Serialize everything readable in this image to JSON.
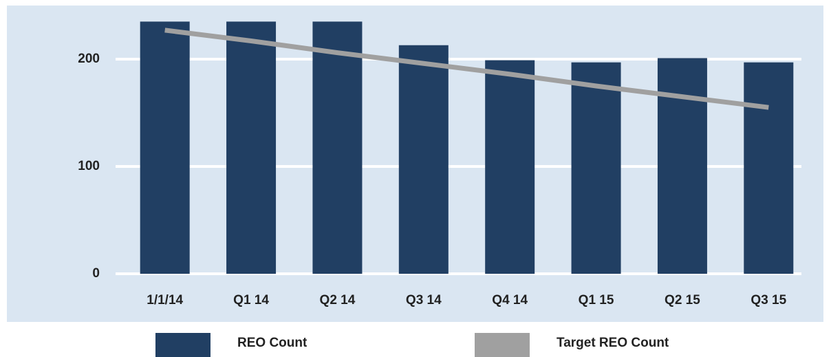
{
  "chart_data": {
    "type": "bar",
    "categories": [
      "1/1/14",
      "Q1 14",
      "Q2 14",
      "Q3 14",
      "Q4 14",
      "Q1 15",
      "Q2 15",
      "Q3 15"
    ],
    "series": [
      {
        "name": "REO Count",
        "type": "bar",
        "color": "#213f63",
        "values": [
          235,
          235,
          235,
          213,
          199,
          197,
          201,
          197
        ]
      },
      {
        "name": "Target REO Count",
        "type": "line",
        "color": "#a0a0a0",
        "values": [
          227,
          217,
          206,
          196,
          186,
          175,
          165,
          155
        ]
      }
    ],
    "ylim": [
      0,
      250
    ],
    "yticks": [
      0,
      100,
      200
    ],
    "grid": true
  }
}
